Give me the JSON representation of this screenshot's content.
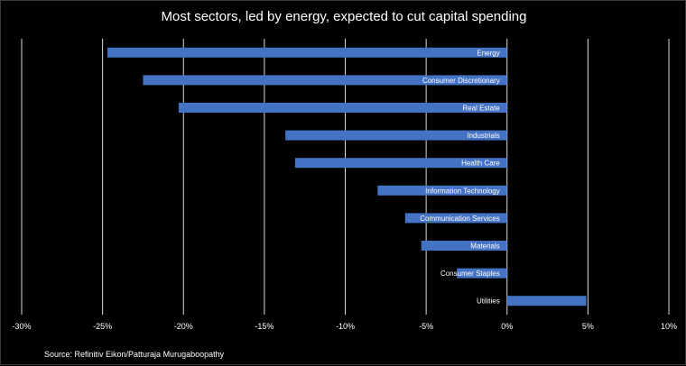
{
  "chart_data": {
    "type": "bar",
    "orientation": "horizontal",
    "title": "Most sectors, led by energy, expected to cut capital spending",
    "categories": [
      "Energy",
      "Consumer Discretionary",
      "Real Estate",
      "Industrials",
      "Health Care",
      "Information Technology",
      "Communication Services",
      "Materials",
      "Consumer Staples",
      "Utilities"
    ],
    "values": [
      -24.7,
      -22.5,
      -20.3,
      -13.7,
      -13.1,
      -8.0,
      -6.3,
      -5.3,
      -3.1,
      4.9
    ],
    "xlim": [
      -30,
      10
    ],
    "xticks": [
      -30,
      -25,
      -20,
      -15,
      -10,
      -5,
      0,
      5,
      10
    ],
    "xtick_labels": [
      "-30%",
      "-25%",
      "-20%",
      "-15%",
      "-10%",
      "-5%",
      "0%",
      "5%",
      "10%"
    ],
    "grid": "vertical",
    "bar_color": "#4472C4",
    "background_color": "#000000",
    "text_color": "#FFFFFF",
    "grid_color": "#D9D9D9"
  },
  "source": "Source: Refinitiv Eikon/Patturaja Murugaboopathy"
}
